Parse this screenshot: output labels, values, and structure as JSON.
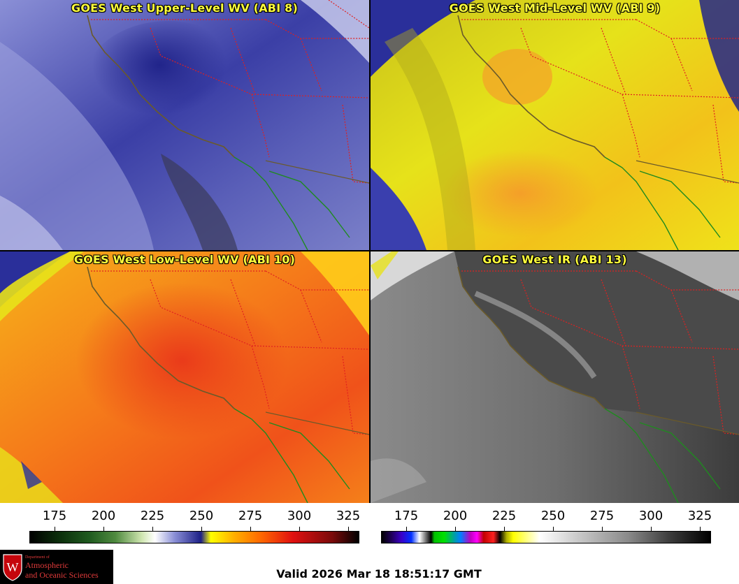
{
  "panels": [
    {
      "title": "GOES West Upper-Level WV (ABI 8)"
    },
    {
      "title": "GOES West Mid-Level WV (ABI 9)"
    },
    {
      "title": "GOES West Low-Level WV (ABI 10)"
    },
    {
      "title": "GOES West IR (ABI 13)"
    }
  ],
  "colorbars": {
    "wv_ticks": [
      "175",
      "200",
      "225",
      "250",
      "275",
      "300",
      "325"
    ],
    "ir_ticks": [
      "175",
      "200",
      "225",
      "250",
      "275",
      "300",
      "325"
    ]
  },
  "logo": {
    "line1": "Department of",
    "line2": "Atmospheric",
    "line3": "and Oceanic Sciences",
    "shield_letter": "W"
  },
  "valid_time": "Valid 2026 Mar 18 18:51:17 GMT",
  "colors": {
    "title_text": "#ffff3c",
    "state_borders": "#e02020",
    "coastline": "#6a5a2a",
    "mexico_coast": "#1f8a1f"
  }
}
